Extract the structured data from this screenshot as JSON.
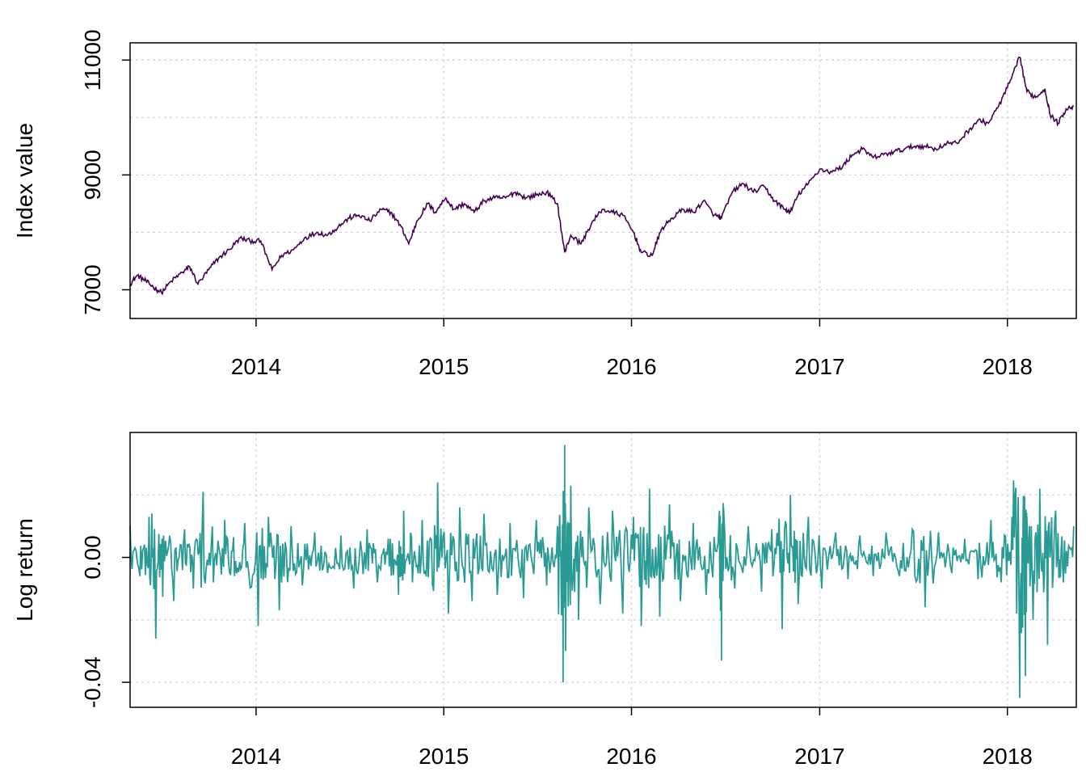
{
  "chart_data": [
    {
      "type": "line",
      "ylabel": "Index value",
      "xlim": [
        "2013-05-01",
        "2018-05-15"
      ],
      "ylim": [
        6500,
        11300
      ],
      "x_ticks": [
        "2014",
        "2015",
        "2016",
        "2017",
        "2018"
      ],
      "y_ticks": [
        "7000",
        "9000",
        "11000"
      ],
      "y_tick_values": [
        7000,
        9000,
        11000
      ],
      "y_grid_values": [
        7000,
        8000,
        9000,
        10000,
        11000
      ],
      "grid": true,
      "series": [
        {
          "color": "#440154",
          "x": [
            "2013-05-01",
            "2013-05-15",
            "2013-06-01",
            "2013-06-15",
            "2013-07-01",
            "2013-07-20",
            "2013-08-10",
            "2013-08-25",
            "2013-09-10",
            "2013-10-01",
            "2013-10-20",
            "2013-11-10",
            "2013-12-01",
            "2013-12-20",
            "2014-01-10",
            "2014-02-01",
            "2014-02-20",
            "2014-03-15",
            "2014-04-05",
            "2014-05-01",
            "2014-05-20",
            "2014-06-10",
            "2014-07-01",
            "2014-07-20",
            "2014-08-10",
            "2014-09-01",
            "2014-09-20",
            "2014-10-10",
            "2014-10-25",
            "2014-11-10",
            "2014-12-01",
            "2014-12-15",
            "2015-01-05",
            "2015-01-20",
            "2015-02-10",
            "2015-03-01",
            "2015-03-20",
            "2015-04-10",
            "2015-05-01",
            "2015-05-20",
            "2015-06-10",
            "2015-06-30",
            "2015-07-20",
            "2015-08-10",
            "2015-08-24",
            "2015-09-05",
            "2015-09-25",
            "2015-10-15",
            "2015-11-05",
            "2015-11-25",
            "2015-12-15",
            "2016-01-05",
            "2016-01-20",
            "2016-02-10",
            "2016-02-28",
            "2016-03-20",
            "2016-04-10",
            "2016-05-01",
            "2016-05-20",
            "2016-06-10",
            "2016-06-24",
            "2016-07-15",
            "2016-08-05",
            "2016-08-25",
            "2016-09-15",
            "2016-10-05",
            "2016-10-25",
            "2016-11-05",
            "2016-11-20",
            "2016-12-10",
            "2017-01-01",
            "2017-01-25",
            "2017-02-15",
            "2017-03-05",
            "2017-03-25",
            "2017-04-15",
            "2017-05-05",
            "2017-05-25",
            "2017-06-15",
            "2017-07-05",
            "2017-07-25",
            "2017-08-15",
            "2017-09-05",
            "2017-09-25",
            "2017-10-15",
            "2017-11-05",
            "2017-11-25",
            "2017-12-15",
            "2018-01-05",
            "2018-01-25",
            "2018-02-08",
            "2018-02-25",
            "2018-03-15",
            "2018-03-25",
            "2018-04-10",
            "2018-04-25",
            "2018-05-10"
          ],
          "y": [
            7100,
            7250,
            7150,
            7050,
            6950,
            7150,
            7300,
            7400,
            7100,
            7350,
            7550,
            7700,
            7900,
            7850,
            7850,
            7350,
            7600,
            7700,
            7900,
            8000,
            7950,
            8100,
            8250,
            8300,
            8200,
            8400,
            8350,
            8100,
            7800,
            8200,
            8500,
            8350,
            8600,
            8400,
            8500,
            8350,
            8550,
            8600,
            8600,
            8700,
            8600,
            8650,
            8700,
            8500,
            7650,
            7950,
            7800,
            8150,
            8400,
            8350,
            8300,
            8000,
            7650,
            7600,
            8050,
            8250,
            8400,
            8350,
            8550,
            8300,
            8250,
            8700,
            8850,
            8700,
            8800,
            8550,
            8400,
            8350,
            8650,
            8850,
            9100,
            9050,
            9150,
            9350,
            9450,
            9300,
            9350,
            9400,
            9450,
            9500,
            9500,
            9450,
            9550,
            9550,
            9750,
            9950,
            9900,
            10200,
            10600,
            11050,
            10450,
            10350,
            10500,
            10050,
            9900,
            10150,
            10200
          ]
        }
      ]
    },
    {
      "type": "line",
      "ylabel": "Log return",
      "xlim": [
        "2013-05-01",
        "2018-05-15"
      ],
      "ylim": [
        -0.048,
        0.04
      ],
      "x_ticks": [
        "2014",
        "2015",
        "2016",
        "2017",
        "2018"
      ],
      "y_ticks": [
        "-0.04",
        "0.00"
      ],
      "y_tick_values": [
        -0.04,
        0.0
      ],
      "y_grid_values": [
        -0.04,
        -0.02,
        0.0,
        0.02
      ],
      "grid": true,
      "series": [
        {
          "color": "#2a9a94",
          "x": [
            "2013-05-01",
            "2013-05-20",
            "2013-06-07",
            "2013-06-20",
            "2013-07-05",
            "2013-07-25",
            "2013-08-15",
            "2013-09-01",
            "2013-09-20",
            "2013-10-10",
            "2013-11-01",
            "2013-11-20",
            "2013-12-10",
            "2014-01-05",
            "2014-01-25",
            "2014-02-15",
            "2014-03-10",
            "2014-04-01",
            "2014-04-25",
            "2014-05-20",
            "2014-06-15",
            "2014-07-10",
            "2014-08-05",
            "2014-08-25",
            "2014-09-15",
            "2014-10-05",
            "2014-10-15",
            "2014-11-01",
            "2014-11-20",
            "2014-12-10",
            "2014-12-20",
            "2015-01-10",
            "2015-02-01",
            "2015-02-25",
            "2015-03-20",
            "2015-04-15",
            "2015-05-10",
            "2015-06-05",
            "2015-06-30",
            "2015-07-20",
            "2015-08-10",
            "2015-08-21",
            "2015-08-24",
            "2015-08-26",
            "2015-09-05",
            "2015-09-20",
            "2015-10-10",
            "2015-11-01",
            "2015-11-25",
            "2015-12-15",
            "2016-01-05",
            "2016-01-20",
            "2016-02-05",
            "2016-02-25",
            "2016-03-15",
            "2016-04-05",
            "2016-04-30",
            "2016-05-25",
            "2016-06-20",
            "2016-06-24",
            "2016-06-28",
            "2016-07-20",
            "2016-08-15",
            "2016-09-10",
            "2016-09-30",
            "2016-10-20",
            "2016-11-05",
            "2016-11-20",
            "2016-12-10",
            "2017-01-05",
            "2017-02-01",
            "2017-02-25",
            "2017-03-20",
            "2017-04-15",
            "2017-05-10",
            "2017-06-05",
            "2017-06-30",
            "2017-07-25",
            "2017-08-20",
            "2017-09-15",
            "2017-10-10",
            "2017-11-05",
            "2017-11-30",
            "2017-12-20",
            "2018-01-10",
            "2018-01-25",
            "2018-02-02",
            "2018-02-05",
            "2018-02-08",
            "2018-02-20",
            "2018-03-05",
            "2018-03-20",
            "2018-04-05",
            "2018-04-20",
            "2018-05-10"
          ],
          "y": [
            0.01,
            -0.006,
            0.013,
            -0.026,
            0.007,
            -0.014,
            0.009,
            -0.01,
            0.021,
            -0.008,
            0.012,
            -0.006,
            0.011,
            -0.022,
            0.013,
            -0.017,
            0.01,
            -0.009,
            0.008,
            -0.005,
            0.007,
            -0.01,
            0.009,
            -0.008,
            0.006,
            -0.012,
            0.015,
            -0.008,
            0.012,
            -0.009,
            0.024,
            -0.018,
            0.016,
            -0.014,
            0.014,
            -0.012,
            0.011,
            -0.013,
            0.012,
            -0.009,
            0.01,
            -0.04,
            0.036,
            -0.03,
            0.023,
            -0.02,
            0.016,
            -0.015,
            0.015,
            -0.018,
            0.013,
            -0.022,
            0.022,
            -0.019,
            0.017,
            -0.014,
            0.011,
            -0.012,
            0.015,
            -0.033,
            0.016,
            -0.01,
            0.01,
            -0.011,
            0.009,
            -0.023,
            0.02,
            -0.015,
            0.013,
            -0.01,
            0.008,
            -0.007,
            0.007,
            -0.006,
            0.008,
            -0.006,
            0.009,
            -0.016,
            0.008,
            -0.005,
            0.006,
            -0.007,
            0.012,
            -0.008,
            0.013,
            -0.045,
            0.014,
            -0.038,
            0.013,
            -0.02,
            0.022,
            -0.028,
            0.015,
            -0.008,
            0.01
          ]
        }
      ]
    }
  ]
}
